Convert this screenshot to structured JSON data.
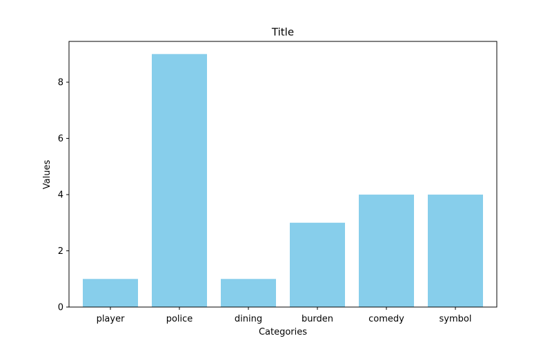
{
  "chart_data": {
    "type": "bar",
    "title": "Title",
    "xlabel": "Categories",
    "ylabel": "Values",
    "categories": [
      "player",
      "police",
      "dining",
      "burden",
      "comedy",
      "symbol"
    ],
    "values": [
      1,
      9,
      1,
      3,
      4,
      4
    ],
    "ylim": [
      0,
      9.45
    ],
    "yticks": [
      0,
      2,
      4,
      6,
      8
    ],
    "grid": false,
    "bar_color": "#87CEEB"
  }
}
